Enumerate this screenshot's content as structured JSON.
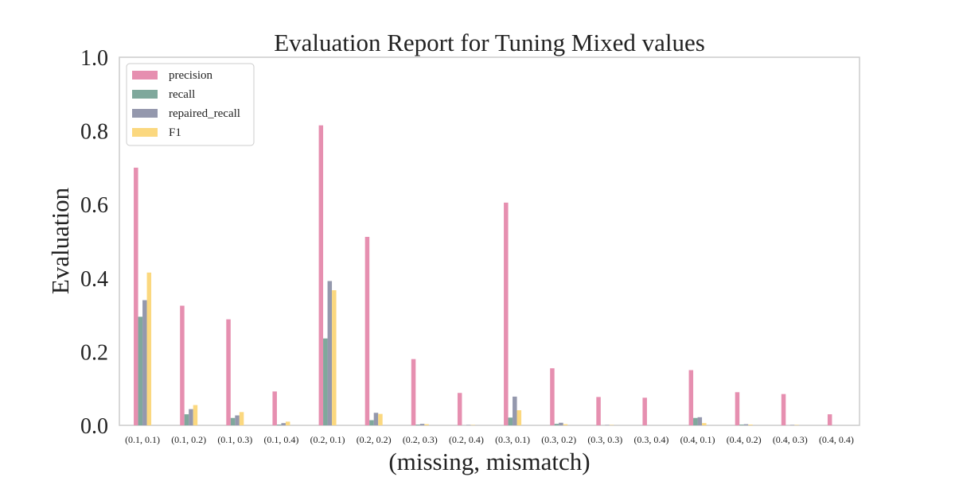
{
  "chart_data": {
    "type": "bar",
    "title": "Evaluation Report for Tuning Mixed values",
    "xlabel": "(missing, mismatch)",
    "ylabel": "Evaluation",
    "ylim": [
      0,
      1.0
    ],
    "yticks": [
      "0.0",
      "0.2",
      "0.4",
      "0.6",
      "0.8",
      "1.0"
    ],
    "grid": false,
    "legend_position": "top-left",
    "categories": [
      "(0.1, 0.1)",
      "(0.1, 0.2)",
      "(0.1, 0.3)",
      "(0.1, 0.4)",
      "(0.2, 0.1)",
      "(0.2, 0.2)",
      "(0.2, 0.3)",
      "(0.2, 0.4)",
      "(0.3, 0.1)",
      "(0.3, 0.2)",
      "(0.3, 0.3)",
      "(0.3, 0.4)",
      "(0.4, 0.1)",
      "(0.4, 0.2)",
      "(0.4, 0.3)",
      "(0.4, 0.4)"
    ],
    "series": [
      {
        "name": "precision",
        "color": "#e68fb0",
        "values": [
          0.7,
          0.325,
          0.288,
          0.092,
          0.815,
          0.512,
          0.18,
          0.088,
          0.605,
          0.155,
          0.077,
          0.075,
          0.15,
          0.09,
          0.085,
          0.03
        ]
      },
      {
        "name": "recall",
        "color": "#7fa89c",
        "values": [
          0.295,
          0.03,
          0.02,
          0.002,
          0.236,
          0.014,
          0.002,
          0.0,
          0.021,
          0.004,
          0.0,
          0.0,
          0.02,
          0.002,
          0.0,
          0.0
        ]
      },
      {
        "name": "repaired_recall",
        "color": "#9498ad",
        "values": [
          0.34,
          0.044,
          0.027,
          0.006,
          0.392,
          0.034,
          0.004,
          0.001,
          0.078,
          0.007,
          0.001,
          0.0,
          0.022,
          0.003,
          0.001,
          0.0
        ]
      },
      {
        "name": "F1",
        "color": "#fbd87f",
        "values": [
          0.415,
          0.055,
          0.036,
          0.01,
          0.367,
          0.031,
          0.003,
          0.001,
          0.041,
          0.003,
          0.001,
          0.0,
          0.006,
          0.002,
          0.001,
          0.0
        ]
      }
    ]
  }
}
